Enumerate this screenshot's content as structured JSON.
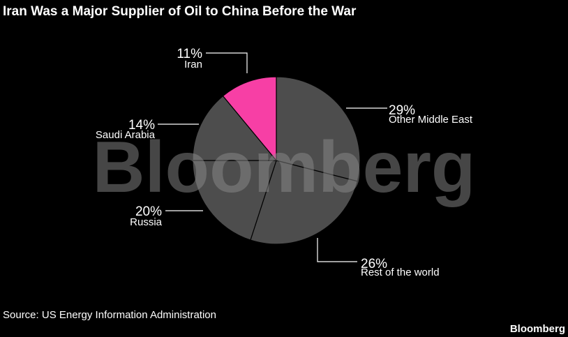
{
  "chart_data": {
    "type": "pie",
    "title": "Iran Was a Major Supplier of Oil to China Before the War",
    "slices": [
      {
        "label": "Other Middle East",
        "value": 29,
        "pct_text": "29%",
        "color": "#4d4d4d",
        "label_side": "right"
      },
      {
        "label": "Rest of the world",
        "value": 26,
        "pct_text": "26%",
        "color": "#4d4d4d",
        "label_side": "right"
      },
      {
        "label": "Russia",
        "value": 20,
        "pct_text": "20%",
        "color": "#4d4d4d",
        "label_side": "left"
      },
      {
        "label": "Saudi Arabia",
        "value": 14,
        "pct_text": "14%",
        "color": "#4d4d4d",
        "label_side": "left"
      },
      {
        "label": "Iran",
        "value": 11,
        "pct_text": "11%",
        "color": "#f73fa5",
        "label_side": "left"
      }
    ],
    "source": "Source: US Energy Information Administration",
    "watermark": "Bloomberg",
    "brand": "Bloomberg"
  }
}
